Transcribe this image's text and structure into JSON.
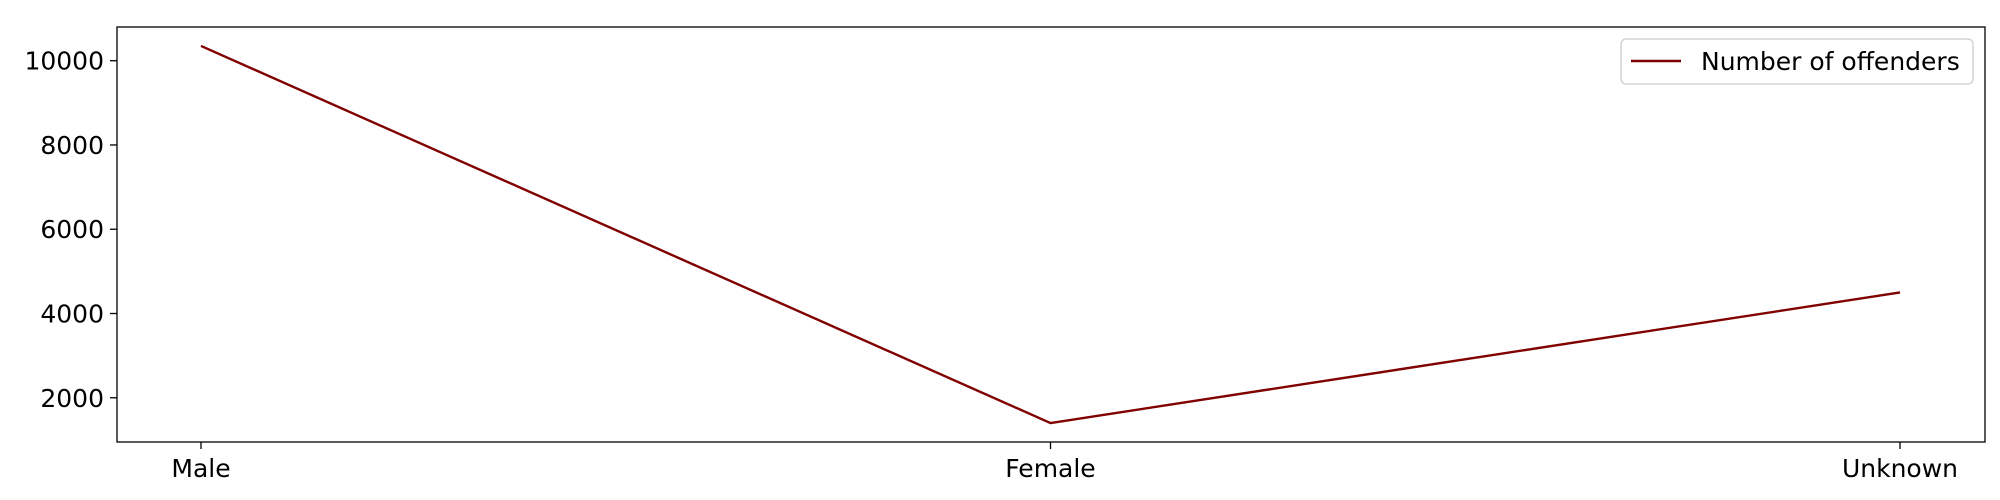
{
  "chart_data": {
    "type": "line",
    "title": "",
    "xlabel": "",
    "ylabel": "",
    "categories": [
      "Male",
      "Female",
      "Unknown"
    ],
    "series": [
      {
        "name": "Number of offenders",
        "values": [
          10350,
          1400,
          4500
        ],
        "color": "#800000"
      }
    ],
    "ylim": [
      950,
      10800
    ],
    "yticks": [
      2000,
      4000,
      6000,
      8000,
      10000
    ],
    "grid": false,
    "legend": "top-right"
  }
}
